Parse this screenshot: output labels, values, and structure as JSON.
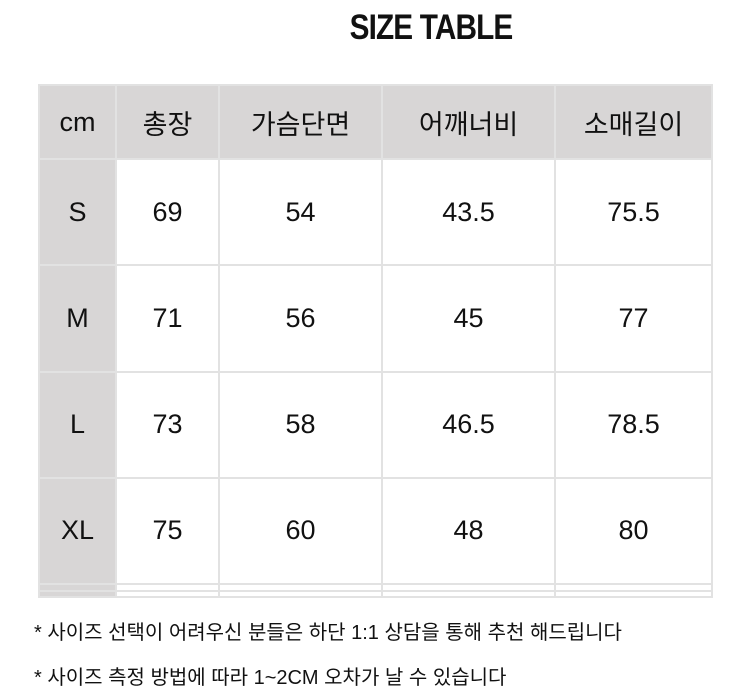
{
  "title": "SIZE TABLE",
  "headers": [
    "cm",
    "총장",
    "가슴단면",
    "어깨너비",
    "소매길이"
  ],
  "rows": [
    [
      "S",
      "69",
      "54",
      "43.5",
      "75.5"
    ],
    [
      "M",
      "71",
      "56",
      "45",
      "77"
    ],
    [
      "L",
      "73",
      "58",
      "46.5",
      "78.5"
    ],
    [
      "XL",
      "75",
      "60",
      "48",
      "80"
    ],
    [
      "",
      "",
      "",
      "",
      ""
    ],
    [
      "",
      "",
      "",
      "",
      ""
    ]
  ],
  "notes": [
    "* 사이즈 선택이 어려우신 분들은 하단 1:1 상담을 통해 추천 해드립니다",
    "* 사이즈 측정 방법에 따라 1~2CM 오차가 날 수 있습니다"
  ]
}
